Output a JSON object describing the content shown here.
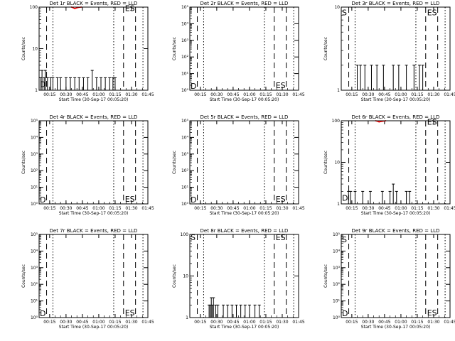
{
  "chart_data": [
    {
      "title": "Det 1r BLACK = Events, RED = LLD",
      "type": "line",
      "yscale": "log",
      "ylim": [
        1,
        100
      ],
      "yticks": [
        "1",
        "10",
        "100"
      ],
      "ylabel": "Counts/sec",
      "xlabel": "Start Time (30-Sep-17 00:05:20)",
      "xlim": [
        "00:05:20",
        "01:45:00"
      ],
      "xticks": [
        "00:15",
        "00:30",
        "00:45",
        "01:00",
        "01:15",
        "01:30",
        "01:45"
      ],
      "events_series": {
        "x": [
          "00:07",
          "00:08",
          "00:10",
          "00:11",
          "00:13",
          "00:16",
          "00:18",
          "00:22",
          "00:25",
          "00:30",
          "00:34",
          "00:38",
          "00:42",
          "00:46",
          "00:50",
          "00:54",
          "00:58",
          "01:02",
          "01:06",
          "01:10",
          "01:13",
          "01:15"
        ],
        "y": [
          2,
          3,
          2,
          3,
          2,
          2,
          2,
          2,
          2,
          2,
          2,
          2,
          2,
          2,
          2,
          3,
          2,
          2,
          2,
          2,
          2,
          2
        ]
      },
      "lld_series": {
        "x": [
          "00:35",
          "00:38",
          "00:41",
          "00:44"
        ],
        "y": [
          100,
          92,
          98,
          100
        ]
      },
      "markers": [
        {
          "label": "D",
          "y": 1.4
        },
        {
          "label": "E",
          "y": 94
        },
        {
          "label": "S",
          "y": 94
        }
      ]
    },
    {
      "title": "Det 2r BLACK = Events, RED = LLD",
      "type": "line",
      "yscale": "log",
      "ylim": [
        1,
        100000
      ],
      "yticks": [
        "10⁰",
        "10¹",
        "10²",
        "10³",
        "10⁴",
        "10⁵"
      ],
      "ylabel": "Counts/sec",
      "xlabel": "Start Time (30-Sep-17 00:05:20)",
      "xlim": [
        "00:05:20",
        "01:45:00"
      ],
      "xticks": [
        "00:15",
        "00:30",
        "00:45",
        "01:00",
        "01:15",
        "01:30",
        "01:45"
      ],
      "events_series": {
        "x": [],
        "y": []
      },
      "lld_series": {
        "x": [],
        "y": []
      },
      "markers": [
        {
          "label": "D",
          "y": 1.8
        },
        {
          "label": "E",
          "y": 2.0
        },
        {
          "label": "S",
          "y": 2.0
        }
      ]
    },
    {
      "title": "Det 3r BLACK = Events, RED = LLD",
      "type": "line",
      "yscale": "log",
      "ylim": [
        1,
        10
      ],
      "yticks": [
        "1",
        "10"
      ],
      "ylabel": "Counts/sec",
      "xlabel": "Start Time (30-Sep-17 00:05:20)",
      "xlim": [
        "00:05:20",
        "01:45:00"
      ],
      "xticks": [
        "00:15",
        "00:30",
        "00:45",
        "01:00",
        "01:15",
        "01:30",
        "01:45"
      ],
      "events_series": {
        "x": [
          "00:20",
          "00:23",
          "00:27",
          "00:33",
          "00:38",
          "00:44",
          "00:53",
          "00:58",
          "01:05",
          "01:12",
          "01:17",
          "01:20"
        ],
        "y": [
          2,
          2,
          2,
          2,
          2,
          2,
          2,
          2,
          2,
          2,
          2,
          2
        ]
      },
      "lld_series": {
        "x": [],
        "y": []
      },
      "markers": [
        {
          "label": "S",
          "y": 8.6
        },
        {
          "label": "E",
          "y": 8.6
        },
        {
          "label": "S",
          "y": 8.6
        }
      ]
    },
    {
      "title": "Det 4r BLACK = Events, RED = LLD",
      "type": "line",
      "yscale": "log",
      "ylim": [
        1,
        100000
      ],
      "yticks": [
        "10⁰",
        "10¹",
        "10²",
        "10³",
        "10⁴",
        "10⁵"
      ],
      "ylabel": "Counts/sec",
      "xlabel": "Start Time (30-Sep-17 00:05:20)",
      "xlim": [
        "00:05:20",
        "01:45:00"
      ],
      "xticks": [
        "00:15",
        "00:30",
        "00:45",
        "01:00",
        "01:15",
        "01:30",
        "01:45"
      ],
      "events_series": {
        "x": [],
        "y": []
      },
      "lld_series": {
        "x": [],
        "y": []
      },
      "markers": [
        {
          "label": "D",
          "y": 1.8
        },
        {
          "label": "E",
          "y": 2.0
        },
        {
          "label": "S",
          "y": 2.0
        }
      ]
    },
    {
      "title": "Det 5r BLACK = Events, RED = LLD",
      "type": "line",
      "yscale": "log",
      "ylim": [
        1,
        100000
      ],
      "yticks": [
        "10⁰",
        "10¹",
        "10²",
        "10³",
        "10⁴",
        "10⁵"
      ],
      "ylabel": "Counts/sec",
      "xlabel": "Start Time (30-Sep-17 00:05:20)",
      "xlim": [
        "00:05:20",
        "01:45:00"
      ],
      "xticks": [
        "00:15",
        "00:30",
        "00:45",
        "01:00",
        "01:15",
        "01:30",
        "01:45"
      ],
      "events_series": {
        "x": [],
        "y": []
      },
      "lld_series": {
        "x": [],
        "y": []
      },
      "markers": [
        {
          "label": "D",
          "y": 1.8
        },
        {
          "label": "E",
          "y": 2.0
        },
        {
          "label": "S",
          "y": 2.0
        }
      ]
    },
    {
      "title": "Det 6r BLACK = Events, RED = LLD",
      "type": "line",
      "yscale": "log",
      "ylim": [
        1,
        100
      ],
      "yticks": [
        "1",
        "10",
        "100"
      ],
      "ylabel": "Counts/sec",
      "xlabel": "Start Time (30-Sep-17 00:05:20)",
      "xlim": [
        "00:05:20",
        "01:45:00"
      ],
      "xticks": [
        "00:15",
        "00:30",
        "00:45",
        "01:00",
        "01:15",
        "01:30",
        "01:45"
      ],
      "events_series": {
        "x": [
          "00:12",
          "00:14",
          "00:18",
          "00:25",
          "00:32",
          "00:43",
          "00:50",
          "00:53",
          "00:56",
          "01:05",
          "01:08"
        ],
        "y": [
          2,
          2,
          2,
          2,
          2,
          2,
          2,
          3,
          2,
          2,
          2
        ]
      },
      "lld_series": {
        "x": [
          "00:37",
          "00:40",
          "00:43",
          "00:46"
        ],
        "y": [
          100,
          94,
          97,
          100
        ]
      },
      "markers": [
        {
          "label": "D",
          "y": 1.4
        },
        {
          "label": "E",
          "y": 94
        },
        {
          "label": "S",
          "y": 94
        }
      ]
    },
    {
      "title": "Det 7r BLACK = Events, RED = LLD",
      "type": "line",
      "yscale": "log",
      "ylim": [
        1,
        100000
      ],
      "yticks": [
        "10⁰",
        "10¹",
        "10²",
        "10³",
        "10⁴",
        "10⁵"
      ],
      "ylabel": "Counts/sec",
      "xlabel": "Start Time (30-Sep-17 00:05:20)",
      "xlim": [
        "00:05:20",
        "01:45:00"
      ],
      "xticks": [
        "00:15",
        "00:30",
        "00:45",
        "01:00",
        "01:15",
        "01:30",
        "01:45"
      ],
      "events_series": {
        "x": [],
        "y": []
      },
      "lld_series": {
        "x": [],
        "y": []
      },
      "markers": [
        {
          "label": "D",
          "y": 1.8
        },
        {
          "label": "E",
          "y": 2.0
        },
        {
          "label": "S",
          "y": 2.0
        }
      ]
    },
    {
      "title": "Det 8r BLACK = Events, RED = LLD",
      "type": "line",
      "yscale": "log",
      "ylim": [
        1,
        100
      ],
      "yticks": [
        "1",
        "10",
        "100"
      ],
      "ylabel": "Counts/sec",
      "xlabel": "Start Time (30-Sep-17 00:05:20)",
      "xlim": [
        "00:05:20",
        "01:45:00"
      ],
      "xticks": [
        "00:15",
        "00:30",
        "00:45",
        "01:00",
        "01:15",
        "01:30",
        "01:45"
      ],
      "events_series": {
        "x": [
          "00:23",
          "00:24",
          "00:25",
          "00:26",
          "00:27",
          "00:29",
          "00:31",
          "00:36",
          "00:40",
          "00:44",
          "00:48",
          "00:52",
          "00:56",
          "01:00",
          "01:05",
          "01:09"
        ],
        "y": [
          2,
          2,
          3,
          2,
          3,
          2,
          2,
          2,
          2,
          2,
          2,
          2,
          2,
          2,
          2,
          2
        ]
      },
      "lld_series": {
        "x": [],
        "y": []
      },
      "markers": [
        {
          "label": "S",
          "y": 86
        },
        {
          "label": "E",
          "y": 86
        },
        {
          "label": "S",
          "y": 86
        }
      ]
    },
    {
      "title": "Det 9r BLACK = Events, RED = LLD",
      "type": "line",
      "yscale": "log",
      "ylim": [
        1,
        100000
      ],
      "yticks": [
        "10⁰",
        "10¹",
        "10²",
        "10³",
        "10⁴",
        "10⁵"
      ],
      "ylabel": "Counts/sec",
      "xlabel": "Start Time (30-Sep-17 00:05:20)",
      "xlim": [
        "00:05:20",
        "01:45:00"
      ],
      "xticks": [
        "00:15",
        "00:30",
        "00:45",
        "01:00",
        "01:15",
        "01:30",
        "01:45"
      ],
      "events_series": {
        "x": [],
        "y": []
      },
      "lld_series": {
        "x": [],
        "y": []
      },
      "markers": [
        {
          "label": "S",
          "y": 50000
        },
        {
          "label": "D",
          "y": 1.8
        },
        {
          "label": "E",
          "y": 2.0
        },
        {
          "label": "S",
          "y": 2.0
        }
      ]
    }
  ],
  "markers_x": {
    "dash": [
      "00:12:12",
      "01:22:42",
      "01:33:42"
    ],
    "dot": [
      "00:18:00",
      "01:13:42",
      "01:40:30"
    ]
  },
  "colors": {
    "events": "#000000",
    "lld": "#ff0000",
    "axes": "#000000",
    "background": "#ffffff"
  }
}
